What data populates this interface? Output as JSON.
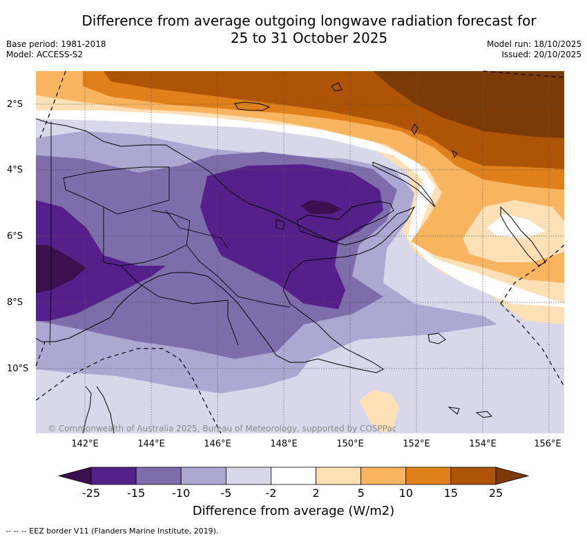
{
  "title": {
    "line1": "Difference from average outgoing longwave radiation forecast for",
    "line2": "25 to 31 October 2025"
  },
  "meta": {
    "base_period": "Base period: 1981-2018",
    "model": "Model: ACCESS-S2",
    "model_run": "Model run: 18/10/2025",
    "issued": "Issued: 20/10/2025"
  },
  "map": {
    "lat_labels": [
      "2°S",
      "4°S",
      "6°S",
      "8°S",
      "10°S"
    ],
    "lon_labels": [
      "142°E",
      "144°E",
      "146°E",
      "148°E",
      "150°E",
      "152°E",
      "154°E",
      "156°E"
    ],
    "copyright": "© Commonwealth of Australia 2025, Bureau of Meteorology, supported by COSPPac",
    "ocean_color": "#ffffff",
    "coast_color": "#000000"
  },
  "colorbar": {
    "title": "Difference from average (W/m2)",
    "ticks": [
      "-25",
      "-15",
      "-10",
      "-5",
      "-2",
      "2",
      "5",
      "10",
      "15",
      "25"
    ],
    "colors": [
      "#3c0f4f",
      "#56208a",
      "#7e6dab",
      "#ada8d2",
      "#d8d8ea",
      "#ffffff",
      "#fde0b5",
      "#f9b45f",
      "#e0801a",
      "#ad5406",
      "#7b3a06"
    ]
  },
  "footnote": "-- -- -- EEZ border V11 (Flanders Marine Institute, 2019)."
}
